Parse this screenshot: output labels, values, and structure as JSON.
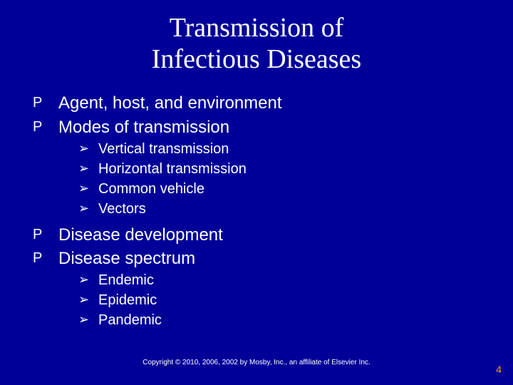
{
  "colors": {
    "background": "#000099",
    "text": "#ffffff",
    "pagenum": "#ff9900"
  },
  "typography": {
    "title_family": "Times New Roman",
    "title_size_pt": 38,
    "body_family": "Arial",
    "body_size_pt": 24,
    "sub_size_pt": 20,
    "copyright_size_pt": 10
  },
  "title": {
    "line1": "Transmission of",
    "line2": "Infectious Diseases"
  },
  "bullets": {
    "level1_glyph": "P",
    "level2_glyph": "➢",
    "b1": "Agent, host, and environment",
    "b2": "Modes of transmission",
    "b2_sub": {
      "s1": "Vertical transmission",
      "s2": "Horizontal transmission",
      "s3": "Common vehicle",
      "s4": "Vectors"
    },
    "b3": "Disease development",
    "b4": "Disease spectrum",
    "b4_sub": {
      "s1": "Endemic",
      "s2": "Epidemic",
      "s3": "Pandemic"
    }
  },
  "copyright": "Copyright © 2010, 2006, 2002 by Mosby, Inc., an affiliate of Elsevier Inc.",
  "pagenum": "4"
}
